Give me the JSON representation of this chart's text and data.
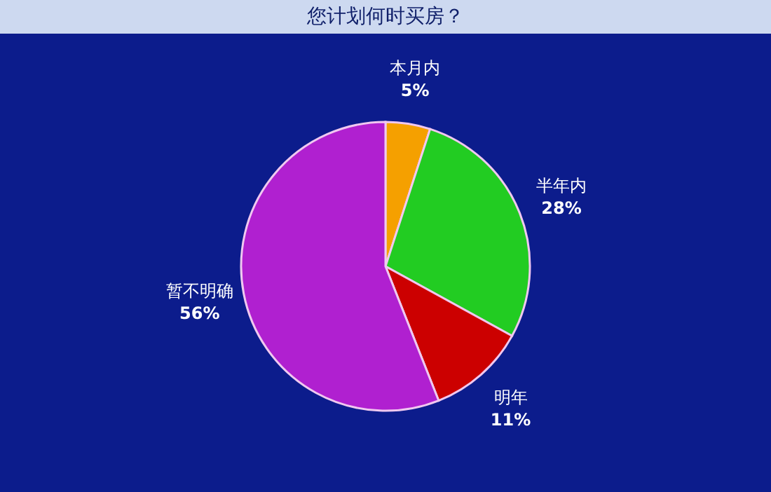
{
  "chart_data": {
    "type": "pie",
    "title": "您计划何时买房？",
    "categories": [
      "本月内",
      "半年内",
      "明年",
      "暂不明确"
    ],
    "values": [
      5,
      28,
      11,
      56
    ],
    "value_labels": [
      "5%",
      "28%",
      "11%",
      "56%"
    ],
    "colors": [
      "#f5a000",
      "#22cc22",
      "#cc0000",
      "#b020d0"
    ],
    "legend": false
  }
}
